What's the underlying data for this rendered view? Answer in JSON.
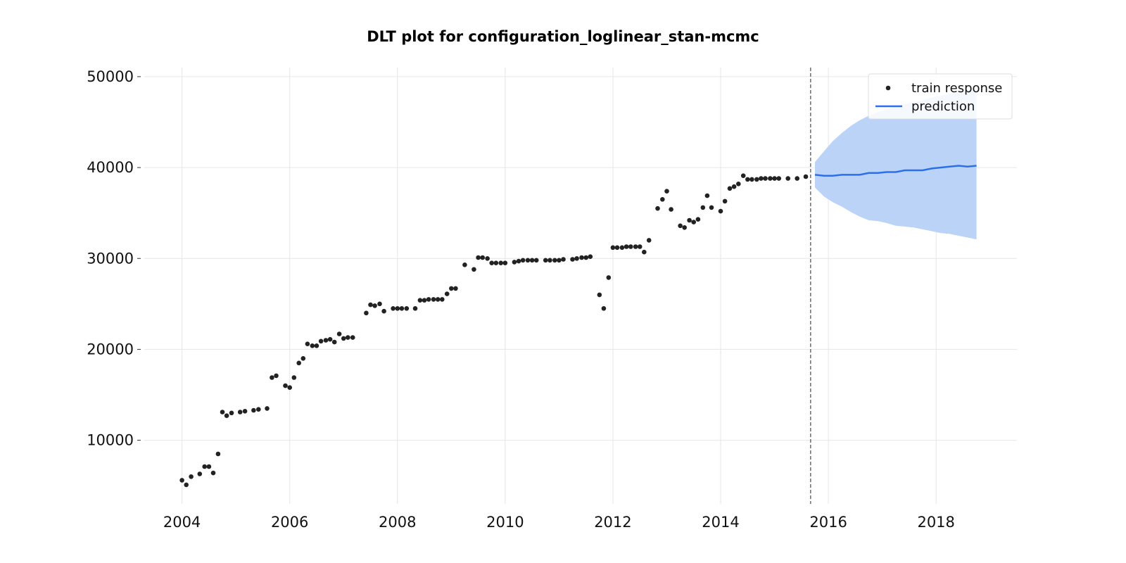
{
  "chart_data": {
    "type": "line",
    "title": "DLT plot for configuration_loglinear_stan-mcmc",
    "xlabel": "",
    "ylabel": "",
    "xlim": [
      2003.3,
      2019.5
    ],
    "ylim": [
      3000,
      51000
    ],
    "x_ticks": [
      2004,
      2006,
      2008,
      2010,
      2012,
      2014,
      2016,
      2018
    ],
    "y_ticks": [
      10000,
      20000,
      30000,
      40000,
      50000
    ],
    "grid": true,
    "legend_position": "top-right",
    "legend": [
      "train response",
      "prediction"
    ],
    "forecast_start": 2015.67,
    "colors": {
      "points": "#222222",
      "prediction": "#2c6fe8",
      "interval": "#bcd3f8",
      "vline": "#555555"
    },
    "series": [
      {
        "name": "train response",
        "kind": "scatter",
        "points": [
          [
            2004.0,
            5600
          ],
          [
            2004.08,
            5100
          ],
          [
            2004.17,
            6000
          ],
          [
            2004.33,
            6300
          ],
          [
            2004.42,
            7100
          ],
          [
            2004.5,
            7100
          ],
          [
            2004.58,
            6400
          ],
          [
            2004.67,
            8500
          ],
          [
            2004.75,
            13100
          ],
          [
            2004.83,
            12700
          ],
          [
            2004.92,
            13000
          ],
          [
            2005.08,
            13100
          ],
          [
            2005.17,
            13200
          ],
          [
            2005.33,
            13300
          ],
          [
            2005.42,
            13400
          ],
          [
            2005.58,
            13500
          ],
          [
            2005.67,
            16900
          ],
          [
            2005.75,
            17100
          ],
          [
            2005.92,
            16000
          ],
          [
            2006.0,
            15800
          ],
          [
            2006.08,
            16900
          ],
          [
            2006.17,
            18500
          ],
          [
            2006.25,
            19000
          ],
          [
            2006.33,
            20600
          ],
          [
            2006.42,
            20400
          ],
          [
            2006.5,
            20400
          ],
          [
            2006.58,
            20900
          ],
          [
            2006.67,
            21000
          ],
          [
            2006.75,
            21100
          ],
          [
            2006.83,
            20800
          ],
          [
            2006.92,
            21700
          ],
          [
            2007.0,
            21200
          ],
          [
            2007.08,
            21300
          ],
          [
            2007.17,
            21300
          ],
          [
            2007.42,
            24000
          ],
          [
            2007.5,
            24900
          ],
          [
            2007.58,
            24800
          ],
          [
            2007.67,
            25000
          ],
          [
            2007.75,
            24200
          ],
          [
            2007.92,
            24500
          ],
          [
            2008.0,
            24500
          ],
          [
            2008.08,
            24500
          ],
          [
            2008.17,
            24500
          ],
          [
            2008.33,
            24500
          ],
          [
            2008.42,
            25400
          ],
          [
            2008.5,
            25400
          ],
          [
            2008.58,
            25500
          ],
          [
            2008.67,
            25500
          ],
          [
            2008.75,
            25500
          ],
          [
            2008.83,
            25500
          ],
          [
            2008.92,
            26100
          ],
          [
            2009.0,
            26700
          ],
          [
            2009.08,
            26700
          ],
          [
            2009.25,
            29300
          ],
          [
            2009.42,
            28800
          ],
          [
            2009.5,
            30100
          ],
          [
            2009.58,
            30100
          ],
          [
            2009.67,
            30000
          ],
          [
            2009.75,
            29500
          ],
          [
            2009.83,
            29500
          ],
          [
            2009.92,
            29500
          ],
          [
            2010.0,
            29500
          ],
          [
            2010.17,
            29600
          ],
          [
            2010.25,
            29700
          ],
          [
            2010.33,
            29800
          ],
          [
            2010.42,
            29800
          ],
          [
            2010.5,
            29800
          ],
          [
            2010.58,
            29800
          ],
          [
            2010.75,
            29800
          ],
          [
            2010.83,
            29800
          ],
          [
            2010.92,
            29800
          ],
          [
            2011.0,
            29800
          ],
          [
            2011.08,
            29900
          ],
          [
            2011.25,
            29900
          ],
          [
            2011.33,
            30000
          ],
          [
            2011.42,
            30100
          ],
          [
            2011.5,
            30100
          ],
          [
            2011.58,
            30200
          ],
          [
            2011.75,
            26000
          ],
          [
            2011.83,
            24500
          ],
          [
            2011.92,
            27900
          ],
          [
            2012.0,
            31200
          ],
          [
            2012.08,
            31200
          ],
          [
            2012.17,
            31200
          ],
          [
            2012.25,
            31300
          ],
          [
            2012.33,
            31300
          ],
          [
            2012.42,
            31300
          ],
          [
            2012.5,
            31300
          ],
          [
            2012.58,
            30700
          ],
          [
            2012.67,
            32000
          ],
          [
            2012.83,
            35500
          ],
          [
            2012.92,
            36500
          ],
          [
            2013.0,
            37400
          ],
          [
            2013.08,
            35400
          ],
          [
            2013.25,
            33600
          ],
          [
            2013.33,
            33400
          ],
          [
            2013.42,
            34200
          ],
          [
            2013.5,
            34000
          ],
          [
            2013.58,
            34300
          ],
          [
            2013.67,
            35600
          ],
          [
            2013.75,
            36900
          ],
          [
            2013.83,
            35600
          ],
          [
            2014.0,
            35200
          ],
          [
            2014.08,
            36300
          ],
          [
            2014.17,
            37700
          ],
          [
            2014.25,
            37900
          ],
          [
            2014.33,
            38200
          ],
          [
            2014.42,
            39100
          ],
          [
            2014.5,
            38700
          ],
          [
            2014.58,
            38700
          ],
          [
            2014.67,
            38700
          ],
          [
            2014.75,
            38800
          ],
          [
            2014.83,
            38800
          ],
          [
            2014.92,
            38800
          ],
          [
            2015.0,
            38800
          ],
          [
            2015.08,
            38800
          ],
          [
            2015.25,
            38800
          ],
          [
            2015.42,
            38800
          ],
          [
            2015.58,
            39000
          ]
        ]
      },
      {
        "name": "prediction",
        "kind": "line",
        "x": [
          2015.75,
          2015.92,
          2016.08,
          2016.25,
          2016.42,
          2016.58,
          2016.75,
          2016.92,
          2017.08,
          2017.25,
          2017.42,
          2017.58,
          2017.75,
          2017.92,
          2018.08,
          2018.25,
          2018.42,
          2018.58,
          2018.75
        ],
        "y": [
          39200,
          39100,
          39100,
          39200,
          39200,
          39200,
          39400,
          39400,
          39500,
          39500,
          39700,
          39700,
          39700,
          39900,
          40000,
          40100,
          40200,
          40100,
          40200
        ],
        "lower": [
          37800,
          36800,
          36200,
          35700,
          35100,
          34600,
          34200,
          34100,
          33900,
          33600,
          33500,
          33400,
          33200,
          33000,
          32800,
          32700,
          32500,
          32300,
          32100
        ],
        "upper": [
          40600,
          41800,
          42900,
          43800,
          44600,
          45200,
          45700,
          46100,
          46400,
          46700,
          47000,
          47200,
          47400,
          47700,
          47900,
          48100,
          48300,
          48500,
          48700
        ]
      }
    ]
  }
}
